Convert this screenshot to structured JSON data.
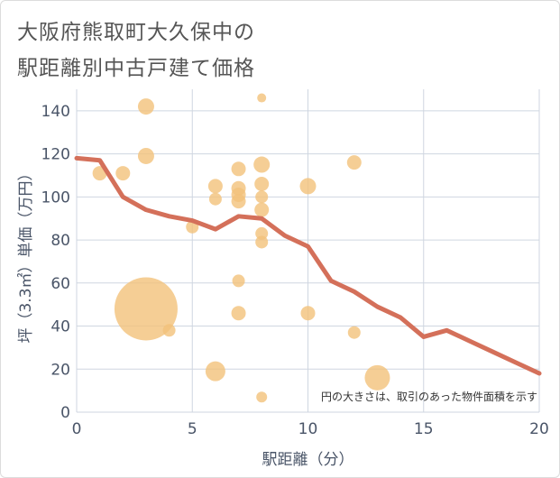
{
  "title_lines": [
    "大阪府熊取町大久保中の",
    "駅距離別中古戸建て価格"
  ],
  "chart_data": {
    "type": "scatter",
    "xlabel": "駅距離（分）",
    "ylabel": "坪（3.3㎡）単価（万円）",
    "xlim": [
      0,
      20
    ],
    "ylim": [
      0,
      150
    ],
    "x_ticks": [
      0,
      5,
      10,
      15,
      20
    ],
    "y_ticks": [
      0,
      20,
      40,
      60,
      80,
      100,
      120,
      140
    ],
    "grid": true,
    "annotation": "円の大きさは、取引のあった物件面積を示す",
    "colors": {
      "bubble": "#f2c27a",
      "line": "#d4705a",
      "grid": "#cfd6e0"
    },
    "bubbles": [
      {
        "x": 1,
        "y": 111,
        "r": 8
      },
      {
        "x": 2,
        "y": 111,
        "r": 8
      },
      {
        "x": 3,
        "y": 142,
        "r": 9
      },
      {
        "x": 3,
        "y": 119,
        "r": 9
      },
      {
        "x": 3,
        "y": 48,
        "r": 35
      },
      {
        "x": 4,
        "y": 38,
        "r": 7
      },
      {
        "x": 5,
        "y": 86,
        "r": 7
      },
      {
        "x": 6,
        "y": 105,
        "r": 8
      },
      {
        "x": 6,
        "y": 99,
        "r": 7
      },
      {
        "x": 6,
        "y": 19,
        "r": 11
      },
      {
        "x": 7,
        "y": 113,
        "r": 8
      },
      {
        "x": 7,
        "y": 104,
        "r": 8
      },
      {
        "x": 7,
        "y": 101,
        "r": 8
      },
      {
        "x": 7,
        "y": 98,
        "r": 8
      },
      {
        "x": 7,
        "y": 61,
        "r": 7
      },
      {
        "x": 7,
        "y": 46,
        "r": 8
      },
      {
        "x": 8,
        "y": 146,
        "r": 5
      },
      {
        "x": 8,
        "y": 115,
        "r": 9
      },
      {
        "x": 8,
        "y": 106,
        "r": 8
      },
      {
        "x": 8,
        "y": 100,
        "r": 7
      },
      {
        "x": 8,
        "y": 94,
        "r": 8
      },
      {
        "x": 8,
        "y": 83,
        "r": 7
      },
      {
        "x": 8,
        "y": 79,
        "r": 7
      },
      {
        "x": 8,
        "y": 7,
        "r": 6
      },
      {
        "x": 10,
        "y": 105,
        "r": 9
      },
      {
        "x": 10,
        "y": 46,
        "r": 8
      },
      {
        "x": 12,
        "y": 116,
        "r": 8
      },
      {
        "x": 12,
        "y": 37,
        "r": 7
      },
      {
        "x": 13,
        "y": 16,
        "r": 14
      }
    ],
    "trend_line": {
      "x": [
        0,
        1,
        2,
        3,
        4,
        5,
        6,
        7,
        8,
        9,
        10,
        11,
        12,
        13,
        14,
        15,
        16,
        17,
        18,
        19,
        20
      ],
      "y": [
        118,
        117,
        100,
        94,
        91,
        89,
        85,
        91,
        90,
        82,
        77,
        61,
        56,
        49,
        44,
        35,
        38,
        33,
        28,
        23,
        18
      ]
    }
  }
}
